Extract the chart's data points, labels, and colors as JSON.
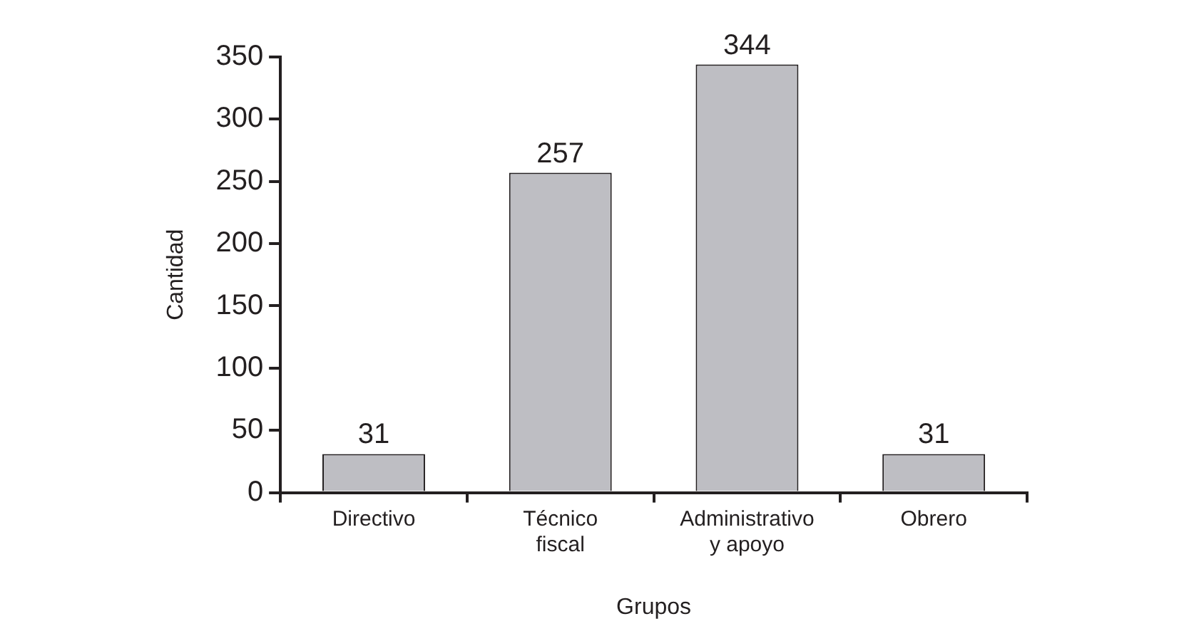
{
  "chart_data": {
    "type": "bar",
    "xlabel": "Grupos",
    "ylabel": "Cantidad",
    "categories": [
      "Directivo",
      "Técnico fiscal",
      "Administrativo y apoyo",
      "Obrero"
    ],
    "values": [
      31,
      257,
      344,
      31
    ],
    "color": "#bebec3",
    "ylim": [
      0,
      350
    ],
    "yticks": [
      0,
      50,
      100,
      150,
      200,
      250,
      300,
      350
    ],
    "data_labels": true
  }
}
